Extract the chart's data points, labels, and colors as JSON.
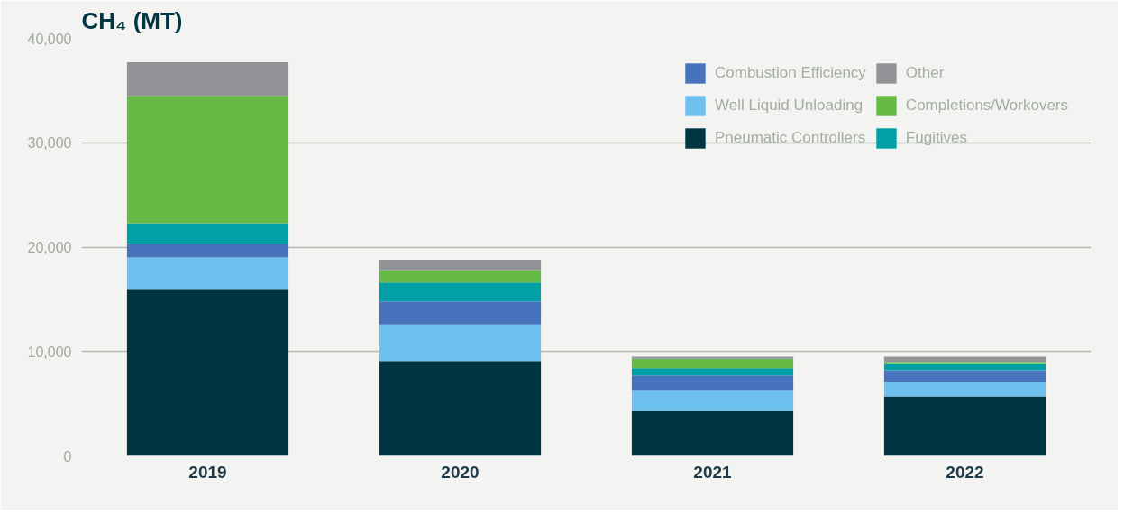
{
  "chart_data": {
    "type": "bar",
    "title": "CH₄ (MT)",
    "categories": [
      "2019",
      "2020",
      "2021",
      "2022"
    ],
    "stacked": true,
    "series": [
      {
        "name": "Pneumatic Controllers",
        "color": "#003642",
        "values": [
          16000,
          9100,
          4300,
          5700
        ]
      },
      {
        "name": "Well Liquid Unloading",
        "color": "#6ec1ee",
        "values": [
          3000,
          3500,
          2000,
          1400
        ]
      },
      {
        "name": "Combustion Efficiency",
        "color": "#4673bb",
        "values": [
          1300,
          2200,
          1400,
          1100
        ]
      },
      {
        "name": "Fugitives",
        "color": "#00a0a6",
        "values": [
          2000,
          1800,
          700,
          600
        ]
      },
      {
        "name": "Completions/Workovers",
        "color": "#66bb46",
        "values": [
          12200,
          1200,
          900,
          200
        ]
      },
      {
        "name": "Other",
        "color": "#929397",
        "values": [
          3200,
          1000,
          200,
          500
        ]
      }
    ],
    "ylim": [
      0,
      40000
    ],
    "yticks": [
      {
        "value": 0,
        "label": "0"
      },
      {
        "value": 10000,
        "label": "10,000"
      },
      {
        "value": 20000,
        "label": "20,000"
      },
      {
        "value": 30000,
        "label": "30,000"
      },
      {
        "value": 40000,
        "label": "40,000"
      }
    ],
    "grid": "y",
    "legend": "top right"
  }
}
